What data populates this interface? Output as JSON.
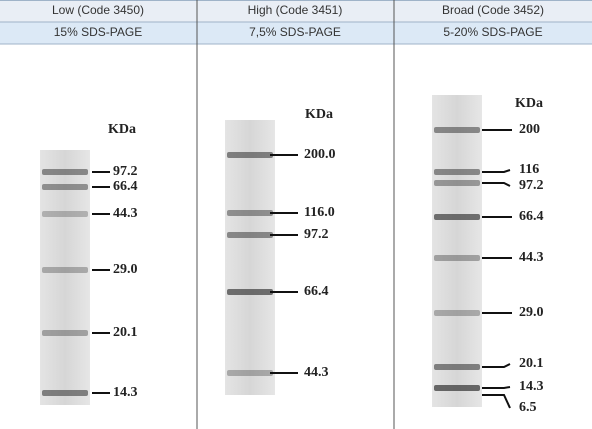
{
  "columns": [
    {
      "title": "Low (Code 3450)",
      "gel": "15% SDS-PAGE",
      "unit": "KDa",
      "bands": [
        "97.2",
        "66.4",
        "44.3",
        "29.0",
        "20.1",
        "14.3"
      ]
    },
    {
      "title": "High (Code 3451)",
      "gel": "7,5% SDS-PAGE",
      "unit": "KDa",
      "bands": [
        "200.0",
        "116.0",
        "97.2",
        "66.4",
        "44.3"
      ]
    },
    {
      "title": "Broad (Code 3452)",
      "gel": "5-20% SDS-PAGE",
      "unit": "KDa",
      "bands": [
        "200",
        "116",
        "97.2",
        "66.4",
        "44.3",
        "29.0",
        "20.1",
        "14.3",
        "6.5"
      ]
    }
  ]
}
